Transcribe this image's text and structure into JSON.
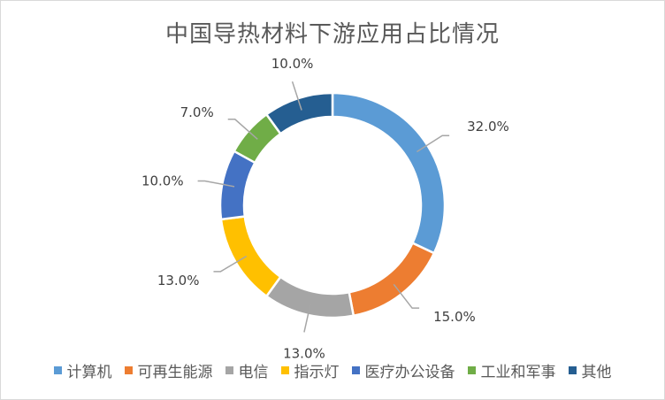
{
  "chart_data": {
    "type": "pie",
    "variant": "donut",
    "title": "中国导热材料下游应用占比情况",
    "categories": [
      "计算机",
      "可再生能源",
      "电信",
      "指示灯",
      "医疗办公设备",
      "工业和军事",
      "其他"
    ],
    "values": [
      32.0,
      15.0,
      13.0,
      13.0,
      10.0,
      7.0,
      10.0
    ],
    "labels": [
      "32.0%",
      "15.0%",
      "13.0%",
      "13.0%",
      "10.0%",
      "7.0%",
      "10.0%"
    ],
    "colors": [
      "#5B9BD5",
      "#ED7D31",
      "#A5A5A5",
      "#FFC000",
      "#4472C4",
      "#70AD47",
      "#255E91"
    ],
    "legend_position": "bottom"
  }
}
